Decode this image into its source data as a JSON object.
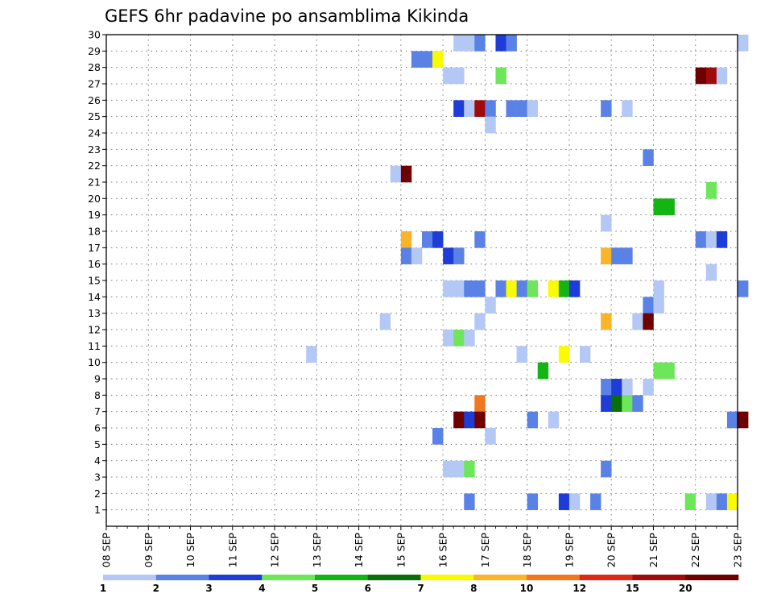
{
  "chart_data": {
    "type": "heatmap",
    "title": "GEFS 6hr padavine po ansamblima Kikinda",
    "x_tick_labels": [
      "08 SEP",
      "09 SEP",
      "10 SEP",
      "11 SEP",
      "12 SEP",
      "13 SEP",
      "14 SEP",
      "15 SEP",
      "16 SEP",
      "17 SEP",
      "18 SEP",
      "19 SEP",
      "20 SEP",
      "21 SEP",
      "22 SEP",
      "23 SEP"
    ],
    "y_tick_labels": [
      "1",
      "2",
      "3",
      "4",
      "5",
      "6",
      "7",
      "8",
      "9",
      "10",
      "11",
      "12",
      "13",
      "14",
      "15",
      "16",
      "17",
      "18",
      "19",
      "20",
      "21",
      "22",
      "23",
      "24",
      "25",
      "26",
      "27",
      "28",
      "29",
      "30"
    ],
    "x_range": [
      "08 SEP",
      "23 SEP"
    ],
    "y_range": [
      0,
      30
    ],
    "steps_per_day": 4,
    "grid": true,
    "legend_position": "bottom",
    "legend": {
      "labels": [
        "1",
        "2",
        "3",
        "4",
        "5",
        "6",
        "7",
        "8",
        "10",
        "12",
        "15",
        "20"
      ],
      "colors": [
        "#b4c8f5",
        "#5a82e6",
        "#1e3cd7",
        "#6ee65a",
        "#14b414",
        "#0a6e0a",
        "#fafa00",
        "#fab428",
        "#f0781e",
        "#dc2814",
        "#a00a0a",
        "#6e0000"
      ]
    },
    "cells": [
      {
        "member": 29,
        "date": "16 SEP",
        "step": 1,
        "value": 1
      },
      {
        "member": 29,
        "date": "16 SEP",
        "step": 2,
        "value": 1
      },
      {
        "member": 29,
        "date": "16 SEP",
        "step": 3,
        "value": 2
      },
      {
        "member": 29,
        "date": "17 SEP",
        "step": 1,
        "value": 3
      },
      {
        "member": 29,
        "date": "17 SEP",
        "step": 2,
        "value": 2
      },
      {
        "member": 29,
        "date": "23 SEP",
        "step": 0,
        "value": 1
      },
      {
        "member": 28,
        "date": "15 SEP",
        "step": 1,
        "value": 2
      },
      {
        "member": 28,
        "date": "15 SEP",
        "step": 2,
        "value": 2
      },
      {
        "member": 28,
        "date": "15 SEP",
        "step": 3,
        "value": 7
      },
      {
        "member": 27,
        "date": "16 SEP",
        "step": 0,
        "value": 1
      },
      {
        "member": 27,
        "date": "16 SEP",
        "step": 1,
        "value": 1
      },
      {
        "member": 27,
        "date": "17 SEP",
        "step": 1,
        "value": 4
      },
      {
        "member": 27,
        "date": "22 SEP",
        "step": 0,
        "value": 20
      },
      {
        "member": 27,
        "date": "22 SEP",
        "step": 1,
        "value": 15
      },
      {
        "member": 27,
        "date": "22 SEP",
        "step": 2,
        "value": 1
      },
      {
        "member": 25,
        "date": "16 SEP",
        "step": 1,
        "value": 3
      },
      {
        "member": 25,
        "date": "16 SEP",
        "step": 2,
        "value": 1
      },
      {
        "member": 25,
        "date": "16 SEP",
        "step": 3,
        "value": 15
      },
      {
        "member": 25,
        "date": "17 SEP",
        "step": 0,
        "value": 2
      },
      {
        "member": 25,
        "date": "17 SEP",
        "step": 2,
        "value": 2
      },
      {
        "member": 25,
        "date": "17 SEP",
        "step": 3,
        "value": 2
      },
      {
        "member": 25,
        "date": "18 SEP",
        "step": 0,
        "value": 1
      },
      {
        "member": 25,
        "date": "19 SEP",
        "step": 3,
        "value": 2
      },
      {
        "member": 25,
        "date": "20 SEP",
        "step": 1,
        "value": 1
      },
      {
        "member": 24,
        "date": "17 SEP",
        "step": 0,
        "value": 1
      },
      {
        "member": 22,
        "date": "20 SEP",
        "step": 3,
        "value": 2
      },
      {
        "member": 21,
        "date": "14 SEP",
        "step": 3,
        "value": 1
      },
      {
        "member": 21,
        "date": "15 SEP",
        "step": 0,
        "value": 20
      },
      {
        "member": 20,
        "date": "22 SEP",
        "step": 1,
        "value": 4
      },
      {
        "member": 19,
        "date": "21 SEP",
        "step": 0,
        "value": 5
      },
      {
        "member": 19,
        "date": "21 SEP",
        "step": 1,
        "value": 5
      },
      {
        "member": 18,
        "date": "19 SEP",
        "step": 3,
        "value": 1
      },
      {
        "member": 17,
        "date": "15 SEP",
        "step": 0,
        "value": 8
      },
      {
        "member": 17,
        "date": "15 SEP",
        "step": 2,
        "value": 2
      },
      {
        "member": 17,
        "date": "15 SEP",
        "step": 3,
        "value": 3
      },
      {
        "member": 17,
        "date": "16 SEP",
        "step": 3,
        "value": 2
      },
      {
        "member": 17,
        "date": "22 SEP",
        "step": 0,
        "value": 2
      },
      {
        "member": 17,
        "date": "22 SEP",
        "step": 1,
        "value": 1
      },
      {
        "member": 17,
        "date": "22 SEP",
        "step": 2,
        "value": 3
      },
      {
        "member": 16,
        "date": "15 SEP",
        "step": 0,
        "value": 2
      },
      {
        "member": 16,
        "date": "15 SEP",
        "step": 1,
        "value": 1
      },
      {
        "member": 16,
        "date": "16 SEP",
        "step": 0,
        "value": 3
      },
      {
        "member": 16,
        "date": "16 SEP",
        "step": 1,
        "value": 2
      },
      {
        "member": 16,
        "date": "19 SEP",
        "step": 3,
        "value": 8
      },
      {
        "member": 16,
        "date": "20 SEP",
        "step": 0,
        "value": 2
      },
      {
        "member": 16,
        "date": "20 SEP",
        "step": 1,
        "value": 2
      },
      {
        "member": 15,
        "date": "22 SEP",
        "step": 1,
        "value": 1
      },
      {
        "member": 14,
        "date": "16 SEP",
        "step": 0,
        "value": 1
      },
      {
        "member": 14,
        "date": "16 SEP",
        "step": 1,
        "value": 1
      },
      {
        "member": 14,
        "date": "16 SEP",
        "step": 2,
        "value": 2
      },
      {
        "member": 14,
        "date": "16 SEP",
        "step": 3,
        "value": 2
      },
      {
        "member": 14,
        "date": "17 SEP",
        "step": 1,
        "value": 2
      },
      {
        "member": 14,
        "date": "17 SEP",
        "step": 2,
        "value": 7
      },
      {
        "member": 14,
        "date": "17 SEP",
        "step": 3,
        "value": 2
      },
      {
        "member": 14,
        "date": "18 SEP",
        "step": 0,
        "value": 4
      },
      {
        "member": 14,
        "date": "18 SEP",
        "step": 2,
        "value": 7
      },
      {
        "member": 14,
        "date": "18 SEP",
        "step": 3,
        "value": 5
      },
      {
        "member": 14,
        "date": "19 SEP",
        "step": 0,
        "value": 3
      },
      {
        "member": 14,
        "date": "21 SEP",
        "step": 0,
        "value": 1
      },
      {
        "member": 14,
        "date": "23 SEP",
        "step": 0,
        "value": 2
      },
      {
        "member": 13,
        "date": "17 SEP",
        "step": 0,
        "value": 1
      },
      {
        "member": 13,
        "date": "20 SEP",
        "step": 3,
        "value": 2
      },
      {
        "member": 13,
        "date": "21 SEP",
        "step": 0,
        "value": 1
      },
      {
        "member": 12,
        "date": "14 SEP",
        "step": 2,
        "value": 1
      },
      {
        "member": 12,
        "date": "16 SEP",
        "step": 3,
        "value": 1
      },
      {
        "member": 12,
        "date": "19 SEP",
        "step": 3,
        "value": 8
      },
      {
        "member": 12,
        "date": "20 SEP",
        "step": 2,
        "value": 1
      },
      {
        "member": 12,
        "date": "20 SEP",
        "step": 3,
        "value": 20
      },
      {
        "member": 11,
        "date": "16 SEP",
        "step": 0,
        "value": 1
      },
      {
        "member": 11,
        "date": "16 SEP",
        "step": 1,
        "value": 4
      },
      {
        "member": 11,
        "date": "16 SEP",
        "step": 2,
        "value": 1
      },
      {
        "member": 10,
        "date": "12 SEP",
        "step": 3,
        "value": 1
      },
      {
        "member": 10,
        "date": "17 SEP",
        "step": 3,
        "value": 1
      },
      {
        "member": 10,
        "date": "18 SEP",
        "step": 3,
        "value": 7
      },
      {
        "member": 10,
        "date": "19 SEP",
        "step": 1,
        "value": 1
      },
      {
        "member": 9,
        "date": "18 SEP",
        "step": 1,
        "value": 5
      },
      {
        "member": 9,
        "date": "21 SEP",
        "step": 0,
        "value": 4
      },
      {
        "member": 9,
        "date": "21 SEP",
        "step": 1,
        "value": 4
      },
      {
        "member": 8,
        "date": "19 SEP",
        "step": 3,
        "value": 2
      },
      {
        "member": 8,
        "date": "20 SEP",
        "step": 0,
        "value": 3
      },
      {
        "member": 8,
        "date": "20 SEP",
        "step": 1,
        "value": 1
      },
      {
        "member": 8,
        "date": "20 SEP",
        "step": 3,
        "value": 1
      },
      {
        "member": 7,
        "date": "16 SEP",
        "step": 3,
        "value": 10
      },
      {
        "member": 7,
        "date": "19 SEP",
        "step": 3,
        "value": 3
      },
      {
        "member": 7,
        "date": "20 SEP",
        "step": 0,
        "value": 6
      },
      {
        "member": 7,
        "date": "20 SEP",
        "step": 1,
        "value": 4
      },
      {
        "member": 7,
        "date": "20 SEP",
        "step": 2,
        "value": 2
      },
      {
        "member": 6,
        "date": "16 SEP",
        "step": 1,
        "value": 20
      },
      {
        "member": 6,
        "date": "16 SEP",
        "step": 2,
        "value": 3
      },
      {
        "member": 6,
        "date": "16 SEP",
        "step": 3,
        "value": 20
      },
      {
        "member": 6,
        "date": "18 SEP",
        "step": 0,
        "value": 2
      },
      {
        "member": 6,
        "date": "18 SEP",
        "step": 2,
        "value": 1
      },
      {
        "member": 6,
        "date": "22 SEP",
        "step": 3,
        "value": 2
      },
      {
        "member": 6,
        "date": "23 SEP",
        "step": 0,
        "value": 20
      },
      {
        "member": 5,
        "date": "15 SEP",
        "step": 3,
        "value": 2
      },
      {
        "member": 5,
        "date": "17 SEP",
        "step": 0,
        "value": 1
      },
      {
        "member": 3,
        "date": "16 SEP",
        "step": 0,
        "value": 1
      },
      {
        "member": 3,
        "date": "16 SEP",
        "step": 1,
        "value": 1
      },
      {
        "member": 3,
        "date": "16 SEP",
        "step": 2,
        "value": 4
      },
      {
        "member": 3,
        "date": "19 SEP",
        "step": 3,
        "value": 2
      },
      {
        "member": 1,
        "date": "16 SEP",
        "step": 2,
        "value": 2
      },
      {
        "member": 1,
        "date": "18 SEP",
        "step": 0,
        "value": 2
      },
      {
        "member": 1,
        "date": "18 SEP",
        "step": 3,
        "value": 3
      },
      {
        "member": 1,
        "date": "19 SEP",
        "step": 0,
        "value": 1
      },
      {
        "member": 1,
        "date": "19 SEP",
        "step": 2,
        "value": 2
      },
      {
        "member": 1,
        "date": "21 SEP",
        "step": 3,
        "value": 4
      },
      {
        "member": 1,
        "date": "22 SEP",
        "step": 1,
        "value": 1
      },
      {
        "member": 1,
        "date": "22 SEP",
        "step": 2,
        "value": 2
      },
      {
        "member": 1,
        "date": "22 SEP",
        "step": 3,
        "value": 7
      }
    ]
  }
}
